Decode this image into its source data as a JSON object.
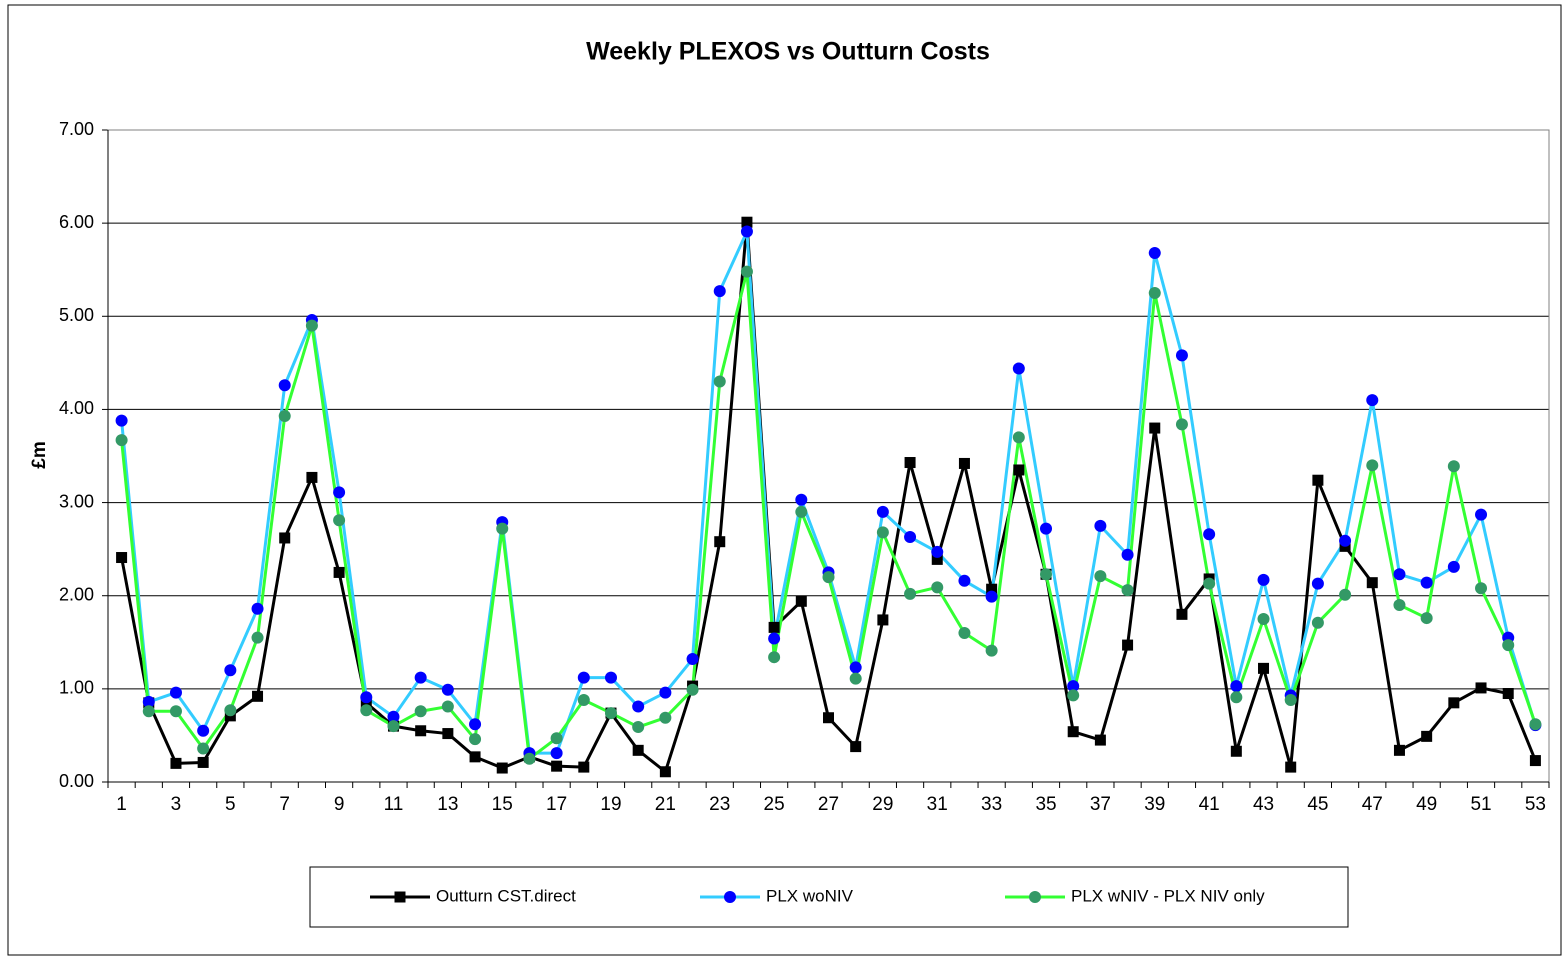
{
  "chart_data": {
    "type": "line",
    "title": "Weekly PLEXOS vs Outturn Costs",
    "y_label": "£m",
    "categories": [
      1,
      null,
      3,
      null,
      5,
      null,
      7,
      null,
      9,
      null,
      11,
      null,
      13,
      null,
      15,
      null,
      17,
      null,
      19,
      null,
      21,
      null,
      23,
      null,
      25,
      null,
      27,
      null,
      29,
      null,
      31,
      null,
      33,
      null,
      35,
      null,
      37,
      null,
      39,
      null,
      41,
      null,
      43,
      null,
      45,
      null,
      47,
      null,
      49,
      null,
      51,
      null,
      53
    ],
    "ylim": [
      0,
      7
    ],
    "yticks": [
      {
        "value": 0,
        "label": "0.00"
      },
      {
        "value": 1,
        "label": "1.00"
      },
      {
        "value": 2,
        "label": "2.00"
      },
      {
        "value": 3,
        "label": "3.00"
      },
      {
        "value": 4,
        "label": "4.00"
      },
      {
        "value": 5,
        "label": "5.00"
      },
      {
        "value": 6,
        "label": "6.00"
      },
      {
        "value": 7,
        "label": "7.00"
      }
    ],
    "grid": true,
    "legend": "bottom",
    "series": [
      {
        "name": "Outturn CST.direct",
        "color": "#000000",
        "marker_color": "#000000",
        "marker": "square",
        "values": [
          2.41,
          0.85,
          0.2,
          0.21,
          0.71,
          0.92,
          2.62,
          3.27,
          2.25,
          0.85,
          0.6,
          0.55,
          0.52,
          0.27,
          0.15,
          0.27,
          0.17,
          0.16,
          0.74,
          0.34,
          0.11,
          1.03,
          2.58,
          6.01,
          1.66,
          1.94,
          0.69,
          0.38,
          1.74,
          3.43,
          2.39,
          3.42,
          2.07,
          3.35,
          2.23,
          0.54,
          0.45,
          1.47,
          3.8,
          1.8,
          2.18,
          0.33,
          1.22,
          0.16,
          3.24,
          2.53,
          2.14,
          0.34,
          0.49,
          0.85,
          1.01,
          0.95,
          0.23
        ]
      },
      {
        "name": "PLX woNIV",
        "color": "#33ccff",
        "marker_color": "#0000ff",
        "marker": "circle",
        "values": [
          3.88,
          0.86,
          0.96,
          0.55,
          1.2,
          1.86,
          4.26,
          4.96,
          3.11,
          0.91,
          0.7,
          1.12,
          0.99,
          0.62,
          2.79,
          0.31,
          0.31,
          1.12,
          1.12,
          0.81,
          0.96,
          1.32,
          5.27,
          5.91,
          1.54,
          3.03,
          2.25,
          1.23,
          2.9,
          2.63,
          2.47,
          2.16,
          1.99,
          4.44,
          2.72,
          1.03,
          2.75,
          2.44,
          5.68,
          4.58,
          2.66,
          1.03,
          2.17,
          0.93,
          2.13,
          2.59,
          4.1,
          2.23,
          2.14,
          2.31,
          2.87,
          1.55,
          0.61
        ]
      },
      {
        "name": "PLX wNIV - PLX NIV only",
        "color": "#33ff33",
        "marker_color": "#339966",
        "marker": "circle",
        "values": [
          3.67,
          0.76,
          0.76,
          0.36,
          0.77,
          1.55,
          3.93,
          4.9,
          2.81,
          0.77,
          0.6,
          0.76,
          0.81,
          0.46,
          2.72,
          0.25,
          0.47,
          0.88,
          0.74,
          0.59,
          0.69,
          0.99,
          4.3,
          5.48,
          1.34,
          2.9,
          2.2,
          1.11,
          2.68,
          2.02,
          2.09,
          1.6,
          1.41,
          3.7,
          2.23,
          0.93,
          2.21,
          2.06,
          5.25,
          3.84,
          2.13,
          0.91,
          1.75,
          0.88,
          1.71,
          2.01,
          3.4,
          1.9,
          1.76,
          3.39,
          2.08,
          1.47,
          0.62
        ]
      }
    ]
  }
}
